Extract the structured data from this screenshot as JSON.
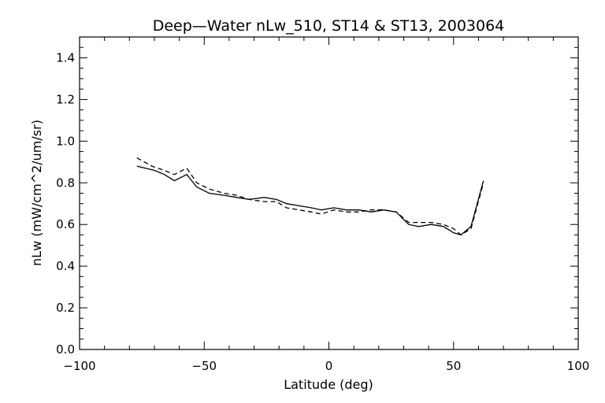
{
  "chart_data": {
    "type": "line",
    "title": "Deep—Water nLw_510, ST14 & ST13, 2003064",
    "xlabel": "Latitude (deg)",
    "ylabel": "nLw (mW/cm^2/um/sr)",
    "xlim": [
      -100,
      100
    ],
    "ylim": [
      0.0,
      1.5
    ],
    "xticks": [
      -100,
      -50,
      0,
      50,
      100
    ],
    "xtick_labels": [
      "−100",
      "−50",
      "0",
      "50",
      "100"
    ],
    "yticks": [
      0.0,
      0.2,
      0.4,
      0.6,
      0.8,
      1.0,
      1.2,
      1.4
    ],
    "ytick_labels": [
      "0.0",
      "0.2",
      "0.4",
      "0.6",
      "0.8",
      "1.0",
      "1.2",
      "1.4"
    ],
    "grid": false,
    "series": [
      {
        "style": "solid",
        "color": "#000000",
        "x": [
          -77,
          -70,
          -66,
          -62,
          -57,
          -53,
          -48,
          -42,
          -37,
          -32,
          -26,
          -21,
          -17,
          -12,
          -7,
          -3,
          2,
          7,
          12,
          17,
          22,
          27,
          32,
          36,
          41,
          46,
          50,
          53,
          57,
          62
        ],
        "y": [
          0.88,
          0.86,
          0.84,
          0.81,
          0.84,
          0.78,
          0.75,
          0.74,
          0.73,
          0.72,
          0.73,
          0.72,
          0.7,
          0.69,
          0.68,
          0.67,
          0.68,
          0.67,
          0.67,
          0.66,
          0.67,
          0.66,
          0.6,
          0.59,
          0.6,
          0.59,
          0.56,
          0.55,
          0.59,
          0.81
        ]
      },
      {
        "style": "dashed",
        "color": "#000000",
        "x": [
          -77,
          -71,
          -66,
          -62,
          -57,
          -53,
          -48,
          -42,
          -37,
          -32,
          -26,
          -21,
          -17,
          -12,
          -7,
          -3,
          2,
          7,
          12,
          17,
          22,
          27,
          32,
          36,
          41,
          46,
          50,
          53,
          57,
          62
        ],
        "y": [
          0.92,
          0.88,
          0.86,
          0.84,
          0.87,
          0.8,
          0.77,
          0.75,
          0.74,
          0.72,
          0.71,
          0.71,
          0.68,
          0.67,
          0.66,
          0.65,
          0.67,
          0.66,
          0.66,
          0.67,
          0.67,
          0.66,
          0.61,
          0.61,
          0.61,
          0.6,
          0.58,
          0.55,
          0.58,
          0.8
        ]
      }
    ]
  }
}
